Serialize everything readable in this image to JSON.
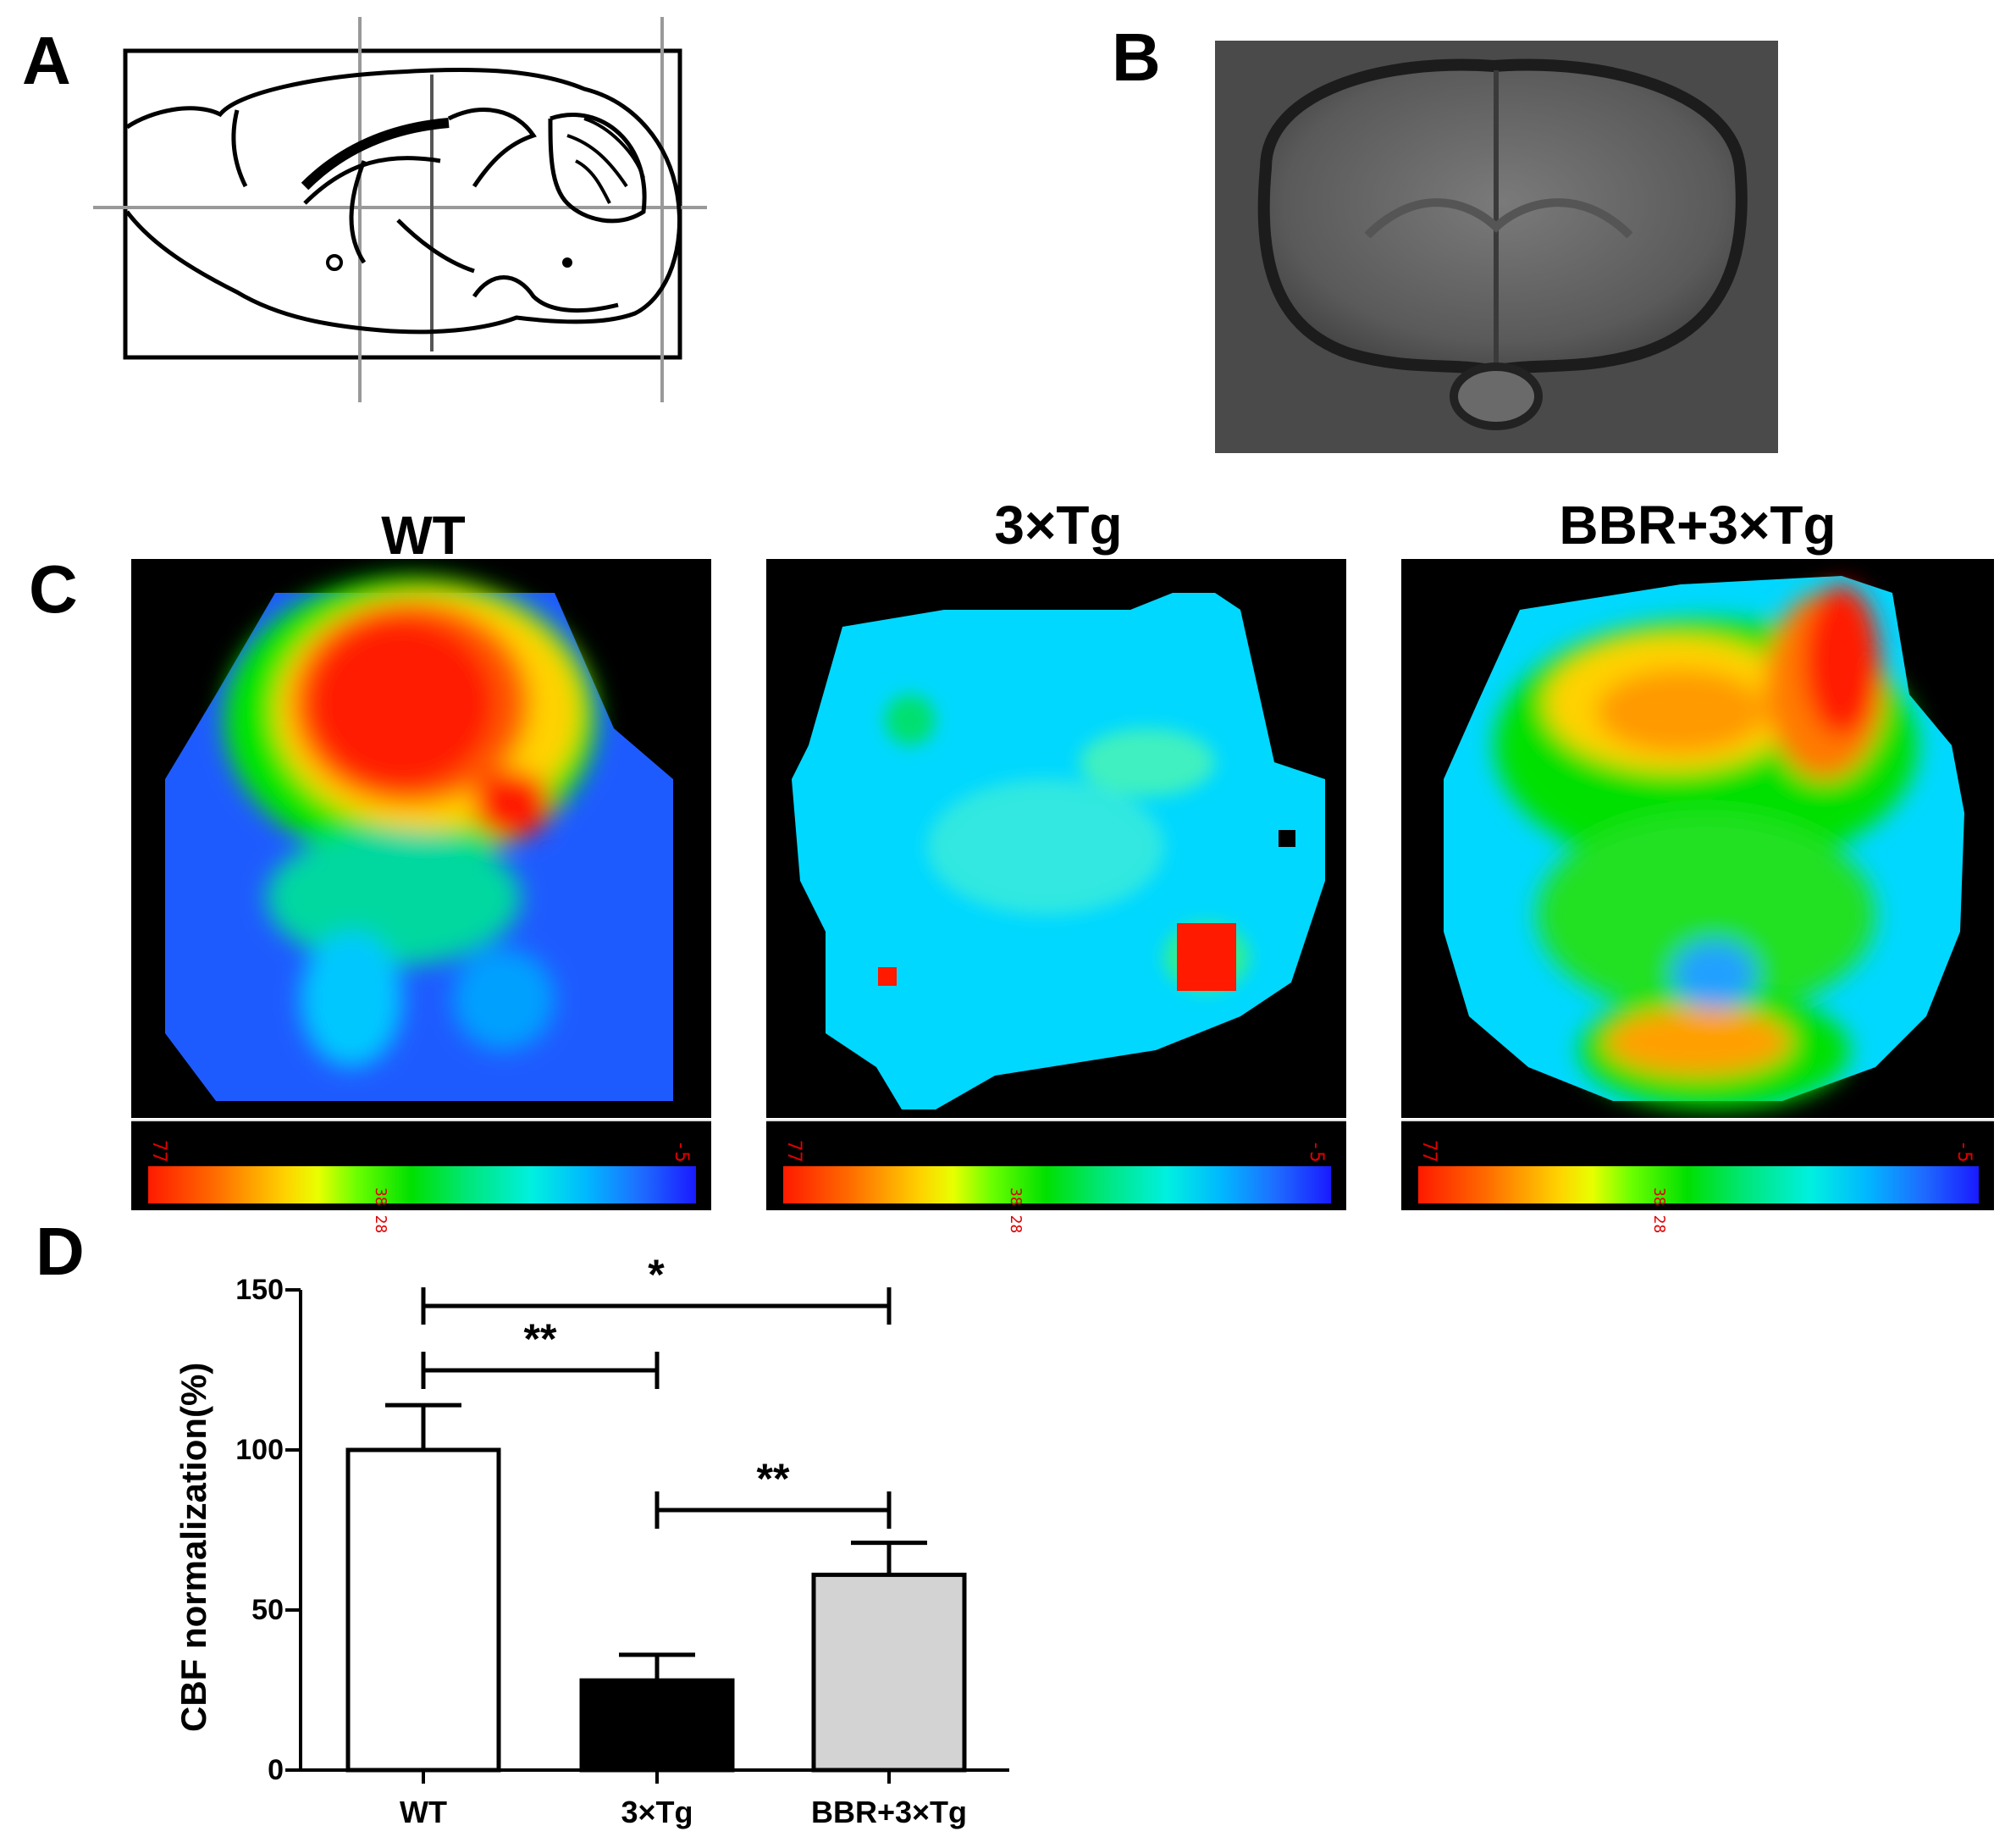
{
  "panels": {
    "a": {
      "letter": "A"
    },
    "b": {
      "letter": "B"
    },
    "c": {
      "letter": "C"
    },
    "d": {
      "letter": "D"
    }
  },
  "heatmaps": [
    {
      "title": "WT",
      "scale_max": "77",
      "scale_min": "-5",
      "scale_mid": "38 28"
    },
    {
      "title": "3×Tg",
      "scale_max": "77",
      "scale_min": "-5",
      "scale_mid": "38 28"
    },
    {
      "title": "BBR+3×Tg",
      "scale_max": "77",
      "scale_min": "-5",
      "scale_mid": "38 28"
    }
  ],
  "chart_data": {
    "type": "bar",
    "categories": [
      "WT",
      "3×Tg",
      "BBR+3×Tg"
    ],
    "values": [
      100,
      28,
      61
    ],
    "errors": [
      14,
      8,
      10
    ],
    "bar_colors": [
      "#ffffff",
      "#000000",
      "#d3d3d3"
    ],
    "ylabel": "CBF normalization(%)",
    "ylim": [
      0,
      150
    ],
    "yticks": [
      0,
      50,
      100,
      150
    ],
    "significance": [
      {
        "from": "WT",
        "to": "BBR+3×Tg",
        "label": "*"
      },
      {
        "from": "WT",
        "to": "3×Tg",
        "label": "**"
      },
      {
        "from": "3×Tg",
        "to": "BBR+3×Tg",
        "label": "**"
      }
    ]
  }
}
